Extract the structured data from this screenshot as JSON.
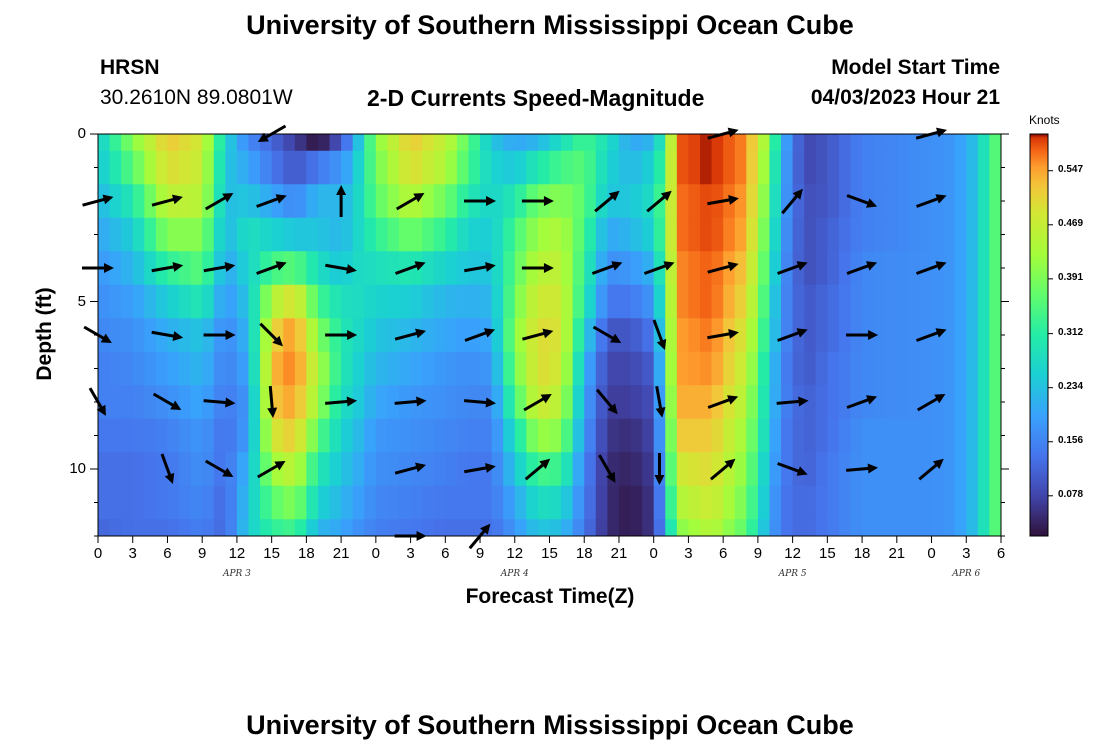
{
  "page": {
    "title": "University of Southern Mississippi Ocean Cube",
    "footer_title": "University of Southern Mississippi Ocean Cube",
    "station_name": "HRSN",
    "station_coords": "30.2610N  89.0801W",
    "subtitle": "2-D Currents Speed-Magnitude",
    "model_label": "Model Start Time",
    "model_time": "04/03/2023 Hour 21"
  },
  "chart_data": {
    "type": "heatmap",
    "title": "2-D Currents Speed-Magnitude",
    "xlabel": "Forecast Time(Z)",
    "ylabel": "Depth (ft)",
    "ylim": [
      12,
      0
    ],
    "y_ticks": [
      "0",
      "5",
      "10"
    ],
    "y_tick_values": [
      0,
      5,
      10
    ],
    "x_tick_labels": [
      "0",
      "3",
      "6",
      "9",
      "12",
      "15",
      "18",
      "21",
      "0",
      "3",
      "6",
      "9",
      "12",
      "15",
      "18",
      "21",
      "0",
      "3",
      "6",
      "9",
      "12",
      "15",
      "18",
      "21",
      "0",
      "3",
      "6"
    ],
    "date_labels": [
      {
        "label": "APR 3",
        "hour": 12
      },
      {
        "label": "APR 4",
        "hour": 36
      },
      {
        "label": "APR 5",
        "hour": 60
      },
      {
        "label": "APR 6",
        "hour": 75
      }
    ],
    "x_range_hours": [
      0,
      78
    ],
    "colorbar": {
      "unit": "Knots",
      "range": [
        0.02,
        0.6
      ],
      "ticks": [
        "0.547",
        "0.469",
        "0.391",
        "0.312",
        "0.234",
        "0.156",
        "0.078"
      ]
    },
    "depth_rows": [
      0,
      1,
      2,
      3,
      4,
      5,
      6,
      7,
      8,
      9,
      10,
      11,
      12
    ],
    "time_profile": [
      {
        "h": 0,
        "v": [
          0.25,
          0.24,
          0.22,
          0.2,
          0.18,
          0.17,
          0.16,
          0.15,
          0.15,
          0.14,
          0.13,
          0.13,
          0.12
        ]
      },
      {
        "h": 3,
        "v": [
          0.4,
          0.36,
          0.3,
          0.25,
          0.22,
          0.19,
          0.17,
          0.16,
          0.15,
          0.14,
          0.13,
          0.13,
          0.13
        ]
      },
      {
        "h": 6,
        "v": [
          0.52,
          0.5,
          0.46,
          0.4,
          0.32,
          0.25,
          0.21,
          0.19,
          0.17,
          0.15,
          0.14,
          0.14,
          0.13
        ]
      },
      {
        "h": 9,
        "v": [
          0.48,
          0.47,
          0.45,
          0.4,
          0.36,
          0.3,
          0.24,
          0.22,
          0.2,
          0.18,
          0.17,
          0.16,
          0.15
        ]
      },
      {
        "h": 11,
        "v": [
          0.26,
          0.24,
          0.23,
          0.22,
          0.2,
          0.18,
          0.16,
          0.15,
          0.14,
          0.13,
          0.13,
          0.12,
          0.12
        ]
      },
      {
        "h": 13,
        "v": [
          0.16,
          0.2,
          0.24,
          0.28,
          0.26,
          0.24,
          0.22,
          0.2,
          0.18,
          0.19,
          0.22,
          0.24,
          0.25
        ]
      },
      {
        "h": 15,
        "v": [
          0.12,
          0.14,
          0.2,
          0.26,
          0.34,
          0.44,
          0.5,
          0.53,
          0.52,
          0.48,
          0.42,
          0.36,
          0.32
        ]
      },
      {
        "h": 17,
        "v": [
          0.07,
          0.1,
          0.16,
          0.24,
          0.36,
          0.5,
          0.56,
          0.57,
          0.55,
          0.52,
          0.46,
          0.4,
          0.34
        ]
      },
      {
        "h": 19,
        "v": [
          0.02,
          0.14,
          0.22,
          0.24,
          0.28,
          0.34,
          0.4,
          0.44,
          0.42,
          0.36,
          0.3,
          0.26,
          0.22
        ]
      },
      {
        "h": 21,
        "v": [
          0.1,
          0.18,
          0.22,
          0.22,
          0.24,
          0.28,
          0.3,
          0.3,
          0.28,
          0.26,
          0.24,
          0.22,
          0.2
        ]
      },
      {
        "h": 22,
        "v": [
          0.18,
          0.22,
          0.24,
          0.25,
          0.27,
          0.28,
          0.28,
          0.27,
          0.26,
          0.24,
          0.22,
          0.2,
          0.18
        ]
      },
      {
        "h": 24,
        "v": [
          0.4,
          0.38,
          0.36,
          0.32,
          0.28,
          0.26,
          0.24,
          0.22,
          0.2,
          0.18,
          0.17,
          0.16,
          0.15
        ]
      },
      {
        "h": 27,
        "v": [
          0.52,
          0.5,
          0.45,
          0.38,
          0.3,
          0.25,
          0.22,
          0.2,
          0.18,
          0.17,
          0.16,
          0.15,
          0.14
        ]
      },
      {
        "h": 30,
        "v": [
          0.46,
          0.44,
          0.38,
          0.32,
          0.26,
          0.22,
          0.2,
          0.18,
          0.17,
          0.16,
          0.15,
          0.14,
          0.13
        ]
      },
      {
        "h": 32,
        "v": [
          0.36,
          0.34,
          0.3,
          0.26,
          0.24,
          0.21,
          0.19,
          0.17,
          0.16,
          0.15,
          0.14,
          0.14,
          0.13
        ]
      },
      {
        "h": 34,
        "v": [
          0.24,
          0.26,
          0.26,
          0.25,
          0.24,
          0.22,
          0.2,
          0.18,
          0.16,
          0.15,
          0.14,
          0.14,
          0.13
        ]
      },
      {
        "h": 36,
        "v": [
          0.2,
          0.24,
          0.3,
          0.34,
          0.36,
          0.38,
          0.4,
          0.38,
          0.34,
          0.28,
          0.24,
          0.2,
          0.18
        ]
      },
      {
        "h": 38,
        "v": [
          0.22,
          0.3,
          0.38,
          0.42,
          0.45,
          0.48,
          0.5,
          0.5,
          0.48,
          0.42,
          0.34,
          0.28,
          0.24
        ]
      },
      {
        "h": 40,
        "v": [
          0.28,
          0.34,
          0.4,
          0.44,
          0.46,
          0.48,
          0.49,
          0.48,
          0.45,
          0.4,
          0.33,
          0.27,
          0.23
        ]
      },
      {
        "h": 42,
        "v": [
          0.34,
          0.36,
          0.36,
          0.34,
          0.32,
          0.3,
          0.26,
          0.22,
          0.2,
          0.18,
          0.16,
          0.15,
          0.14
        ]
      },
      {
        "h": 44,
        "v": [
          0.28,
          0.26,
          0.24,
          0.2,
          0.17,
          0.14,
          0.1,
          0.08,
          0.07,
          0.06,
          0.05,
          0.05,
          0.05
        ]
      },
      {
        "h": 46,
        "v": [
          0.2,
          0.22,
          0.24,
          0.22,
          0.18,
          0.14,
          0.1,
          0.08,
          0.07,
          0.05,
          0.04,
          0.03,
          0.03
        ]
      },
      {
        "h": 48,
        "v": [
          0.22,
          0.26,
          0.28,
          0.26,
          0.22,
          0.18,
          0.14,
          0.11,
          0.09,
          0.08,
          0.07,
          0.06,
          0.06
        ]
      },
      {
        "h": 49,
        "v": [
          0.34,
          0.36,
          0.38,
          0.38,
          0.36,
          0.34,
          0.32,
          0.3,
          0.28,
          0.26,
          0.24,
          0.22,
          0.2
        ]
      },
      {
        "h": 50,
        "v": [
          0.58,
          0.58,
          0.57,
          0.57,
          0.56,
          0.56,
          0.55,
          0.55,
          0.54,
          0.52,
          0.48,
          0.44,
          0.4
        ]
      },
      {
        "h": 53,
        "v": [
          0.6,
          0.6,
          0.59,
          0.59,
          0.58,
          0.58,
          0.57,
          0.56,
          0.54,
          0.52,
          0.5,
          0.48,
          0.45
        ]
      },
      {
        "h": 56,
        "v": [
          0.56,
          0.56,
          0.55,
          0.54,
          0.52,
          0.5,
          0.48,
          0.46,
          0.44,
          0.42,
          0.4,
          0.38,
          0.36
        ]
      },
      {
        "h": 58,
        "v": [
          0.4,
          0.38,
          0.36,
          0.34,
          0.32,
          0.3,
          0.28,
          0.26,
          0.25,
          0.24,
          0.22,
          0.21,
          0.2
        ]
      },
      {
        "h": 59,
        "v": [
          0.22,
          0.21,
          0.2,
          0.19,
          0.18,
          0.17,
          0.17,
          0.16,
          0.16,
          0.15,
          0.15,
          0.14,
          0.14
        ]
      },
      {
        "h": 61,
        "v": [
          0.08,
          0.08,
          0.09,
          0.09,
          0.09,
          0.1,
          0.1,
          0.1,
          0.11,
          0.11,
          0.11,
          0.12,
          0.12
        ]
      },
      {
        "h": 63,
        "v": [
          0.1,
          0.1,
          0.1,
          0.11,
          0.11,
          0.12,
          0.12,
          0.13,
          0.13,
          0.13,
          0.14,
          0.14,
          0.14
        ]
      },
      {
        "h": 66,
        "v": [
          0.15,
          0.15,
          0.15,
          0.15,
          0.16,
          0.16,
          0.16,
          0.16,
          0.16,
          0.17,
          0.17,
          0.17,
          0.17
        ]
      },
      {
        "h": 72,
        "v": [
          0.17,
          0.17,
          0.17,
          0.17,
          0.17,
          0.17,
          0.17,
          0.17,
          0.17,
          0.17,
          0.17,
          0.17,
          0.17
        ]
      },
      {
        "h": 74,
        "v": [
          0.18,
          0.18,
          0.18,
          0.18,
          0.18,
          0.18,
          0.18,
          0.18,
          0.18,
          0.18,
          0.18,
          0.18,
          0.18
        ]
      },
      {
        "h": 76,
        "v": [
          0.24,
          0.24,
          0.24,
          0.24,
          0.24,
          0.24,
          0.24,
          0.24,
          0.24,
          0.24,
          0.24,
          0.24,
          0.24
        ]
      },
      {
        "h": 77,
        "v": [
          0.33,
          0.33,
          0.33,
          0.33,
          0.33,
          0.33,
          0.33,
          0.33,
          0.33,
          0.33,
          0.33,
          0.33,
          0.33
        ]
      },
      {
        "h": 78,
        "v": [
          0.38,
          0.38,
          0.38,
          0.38,
          0.38,
          0.38,
          0.38,
          0.38,
          0.38,
          0.38,
          0.38,
          0.38,
          0.38
        ]
      }
    ],
    "arrow_times_hours": [
      0,
      6,
      10.5,
      15,
      21,
      27,
      33,
      38,
      44,
      48.5,
      54,
      60,
      66,
      72
    ],
    "arrow_depths_ft": [
      0,
      2,
      4,
      6,
      8,
      10,
      12
    ],
    "arrow_directions_deg": [
      [
        null,
        null,
        null,
        210,
        null,
        null,
        null,
        null,
        null,
        null,
        15,
        null,
        null,
        15
      ],
      [
        15,
        15,
        30,
        20,
        90,
        30,
        0,
        0,
        40,
        40,
        10,
        50,
        340,
        20
      ],
      [
        0,
        10,
        10,
        20,
        350,
        20,
        10,
        0,
        20,
        20,
        15,
        20,
        20,
        20
      ],
      [
        330,
        350,
        0,
        315,
        0,
        15,
        20,
        15,
        330,
        290,
        10,
        20,
        0,
        20
      ],
      [
        300,
        330,
        355,
        275,
        5,
        5,
        355,
        30,
        310,
        280,
        20,
        5,
        20,
        30
      ],
      [
        null,
        290,
        330,
        30,
        null,
        15,
        10,
        40,
        300,
        270,
        40,
        340,
        5,
        40
      ],
      [
        null,
        null,
        null,
        null,
        null,
        0,
        50,
        null,
        null,
        null,
        null,
        null,
        null,
        null
      ]
    ]
  }
}
